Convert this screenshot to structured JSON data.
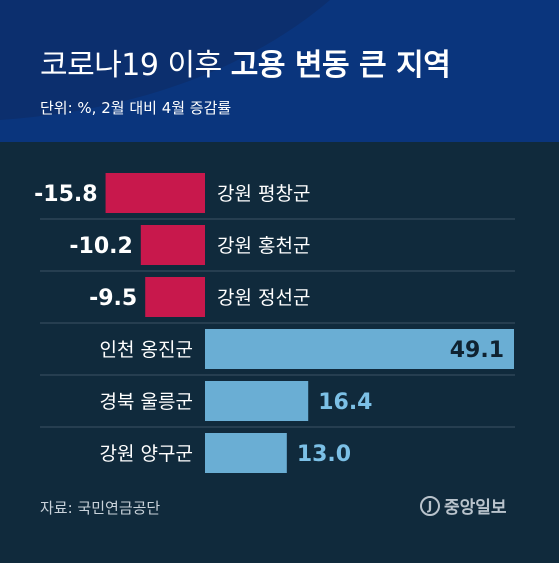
{
  "header": {
    "title_light": "코로나19 이후",
    "title_bold": "고용 변동 큰 지역",
    "subtitle": "단위: %, 2월 대비 4월 증감률"
  },
  "footer": {
    "source": "자료: 국민연금공단",
    "logo_text": "중앙일보",
    "logo_mark": "J"
  },
  "colors": {
    "header_bg": "#0c2f6e",
    "header_wave": "#0a3a8a",
    "body_bg": "#102a3c",
    "negative_bar": "#c8184c",
    "positive_bar": "#6aaed4",
    "text": "#ffffff",
    "value_positive_outside": "#7cc0e6",
    "value_inside": "#0f2230"
  },
  "chart_data": {
    "type": "bar",
    "orientation": "horizontal",
    "categories": [
      "강원 평창군",
      "강원 홍천군",
      "강원 정선군",
      "인천 옹진군",
      "경북 울릉군",
      "강원 양구군"
    ],
    "values": [
      -15.8,
      -10.2,
      -9.5,
      49.1,
      16.4,
      13.0
    ],
    "value_labels": [
      "-15.8",
      "-10.2",
      "-9.5",
      "49.1",
      "16.4",
      "13.0"
    ],
    "title": "코로나19 이후 고용 변동 큰 지역",
    "subtitle": "단위: %, 2월 대비 4월 증감률",
    "xlabel": "",
    "ylabel": "",
    "xlim": [
      -15.8,
      49.1
    ],
    "grid": false,
    "legend": "none"
  }
}
